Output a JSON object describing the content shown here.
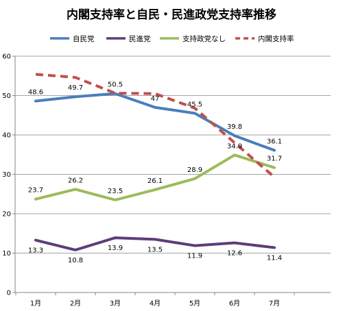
{
  "chart_data": {
    "type": "line",
    "title": "内閣支持率と自民・民進政党支持率推移",
    "xlabel": "",
    "ylabel": "",
    "categories": [
      "1月",
      "2月",
      "3月",
      "4月",
      "5月",
      "6月",
      "7月"
    ],
    "ylim": [
      0,
      60
    ],
    "yticks": [
      0,
      10,
      20,
      30,
      40,
      50,
      60
    ],
    "grid": "horizontal",
    "legend_position": "top",
    "series": [
      {
        "name": "自民党",
        "color": "#4a7ebb",
        "dashed": false,
        "show_labels": true,
        "label_side": "above",
        "values": [
          48.6,
          49.7,
          50.5,
          47,
          45.5,
          39.8,
          36.1
        ],
        "labels": [
          "48.6",
          "49.7",
          "50.5",
          "47",
          "45.5",
          "39.8",
          "36.1"
        ]
      },
      {
        "name": "民進党",
        "color": "#5f3c7a",
        "dashed": false,
        "show_labels": true,
        "label_side": "below",
        "values": [
          13.3,
          10.8,
          13.9,
          13.5,
          11.9,
          12.6,
          11.4
        ],
        "labels": [
          "13.3",
          "10.8",
          "13.9",
          "13.5",
          "11.9",
          "12.6",
          "11.4"
        ]
      },
      {
        "name": "支持政党なし",
        "color": "#9bbb59",
        "dashed": false,
        "show_labels": true,
        "label_side": "above",
        "values": [
          23.7,
          26.2,
          23.5,
          26.1,
          28.9,
          34.9,
          31.7
        ],
        "labels": [
          "23.7",
          "26.2",
          "23.5",
          "26.1",
          "28.9",
          "34.9",
          "31.7"
        ]
      },
      {
        "name": "内閣支持率",
        "color": "#c0504d",
        "dashed": true,
        "show_labels": false,
        "label_side": "none",
        "values": [
          55.4,
          54.6,
          50.6,
          50.5,
          46.8,
          38.0,
          29.3
        ],
        "labels": []
      }
    ]
  }
}
